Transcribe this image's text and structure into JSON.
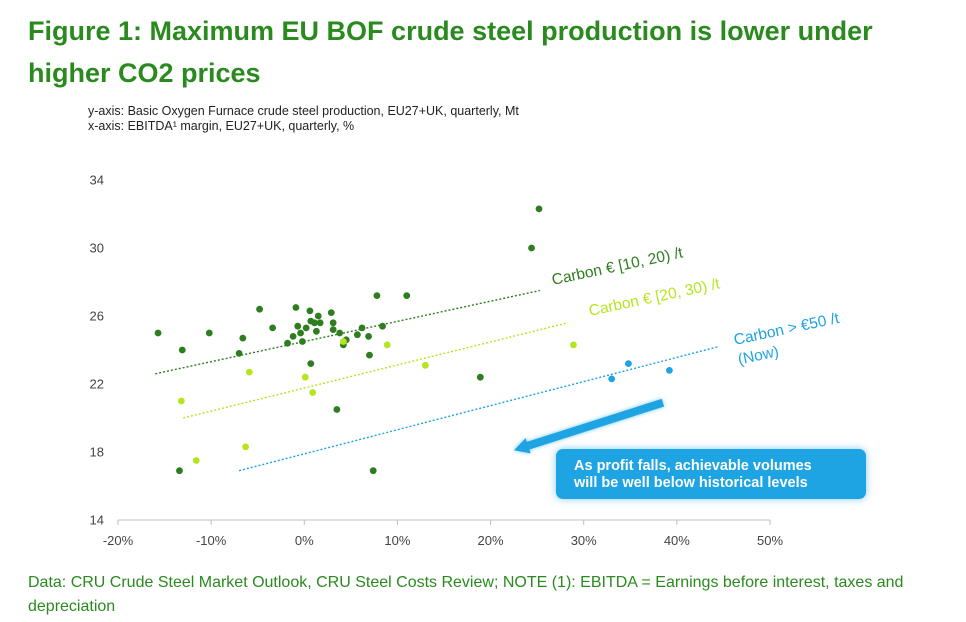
{
  "title": "Figure 1: Maximum EU BOF crude steel production is lower under higher CO2 prices",
  "y_axis_description": "y-axis: Basic Oxygen Furnace crude steel production, EU27+UK, quarterly, Mt",
  "x_axis_description": "x-axis: EBITDA¹ margin, EU27+UK, quarterly, %",
  "footnote": "Data: CRU Crude Steel Market Outlook, CRU Steel Costs Review; NOTE (1): EBITDA = Earnings before interest, taxes and depreciation",
  "callout": {
    "line1": "As profit falls, achievable volumes",
    "line2": "will be well below historical levels"
  },
  "colors": {
    "title": "#2a8a1e",
    "dark_green": "#2e7d1f",
    "light_green": "#b5e61d",
    "blue": "#1ea3e3"
  },
  "chart_data": {
    "type": "scatter",
    "x_ticks": [
      "-20%",
      "-10%",
      "0%",
      "10%",
      "20%",
      "30%",
      "40%",
      "50%"
    ],
    "y_ticks": [
      "14",
      "18",
      "22",
      "26",
      "30",
      "34"
    ],
    "xlim": [
      -20,
      50
    ],
    "ylim": [
      14,
      34
    ],
    "grid": false,
    "series": [
      {
        "name": "Carbon € [10, 20) /t",
        "color": "#2e7d1f",
        "points": [
          [
            -15.7,
            25.0
          ],
          [
            -13.1,
            24.0
          ],
          [
            -10.2,
            25.0
          ],
          [
            -7.0,
            23.8
          ],
          [
            -6.6,
            24.7
          ],
          [
            -4.8,
            26.4
          ],
          [
            -3.4,
            25.3
          ],
          [
            -1.8,
            24.4
          ],
          [
            -1.2,
            24.8
          ],
          [
            -0.9,
            26.5
          ],
          [
            -0.7,
            25.4
          ],
          [
            -0.4,
            25.0
          ],
          [
            -0.2,
            24.5
          ],
          [
            0.2,
            25.3
          ],
          [
            0.6,
            26.3
          ],
          [
            0.7,
            25.7
          ],
          [
            1.1,
            25.6
          ],
          [
            1.3,
            25.1
          ],
          [
            1.5,
            26.0
          ],
          [
            1.7,
            25.6
          ],
          [
            0.7,
            23.2
          ],
          [
            2.9,
            26.2
          ],
          [
            3.1,
            25.6
          ],
          [
            3.1,
            25.2
          ],
          [
            3.8,
            25.0
          ],
          [
            4.2,
            24.3
          ],
          [
            4.5,
            24.6
          ],
          [
            5.7,
            24.9
          ],
          [
            6.2,
            25.3
          ],
          [
            6.9,
            24.8
          ],
          [
            7.0,
            23.7
          ],
          [
            8.4,
            25.4
          ],
          [
            7.8,
            27.2
          ],
          [
            11.0,
            27.2
          ],
          [
            3.5,
            20.5
          ],
          [
            -13.4,
            16.9
          ],
          [
            7.4,
            16.9
          ],
          [
            18.9,
            22.4
          ],
          [
            24.4,
            30.0
          ],
          [
            25.2,
            32.3
          ]
        ]
      },
      {
        "name": "Carbon € [20, 30) /t",
        "color": "#b5e61d",
        "points": [
          [
            -13.2,
            21.0
          ],
          [
            -11.6,
            17.5
          ],
          [
            -6.3,
            18.3
          ],
          [
            -5.9,
            22.7
          ],
          [
            0.1,
            22.4
          ],
          [
            0.9,
            21.5
          ],
          [
            4.2,
            24.5
          ],
          [
            8.9,
            24.3
          ],
          [
            13.0,
            23.1
          ],
          [
            28.9,
            24.3
          ]
        ]
      },
      {
        "name": "Carbon > €50 /t\n(Now)",
        "color": "#1ea3e3",
        "points": [
          [
            33.0,
            22.3
          ],
          [
            34.8,
            23.2
          ],
          [
            39.2,
            22.8
          ]
        ]
      }
    ],
    "trend_lines": [
      {
        "series": "Carbon € [10, 20) /t",
        "from": [
          -16,
          22.6
        ],
        "to": [
          25.3,
          27.5
        ]
      },
      {
        "series": "Carbon € [20, 30) /t",
        "from": [
          -13,
          20.0
        ],
        "to": [
          28.3,
          25.6
        ]
      },
      {
        "series": "Carbon > €50 /t\n(Now)",
        "from": [
          -7,
          16.9
        ],
        "to": [
          44.5,
          24.2
        ]
      }
    ],
    "annotation_arrow": {
      "from": [
        38.5,
        20.9
      ],
      "to": [
        22.5,
        18.1
      ]
    }
  }
}
